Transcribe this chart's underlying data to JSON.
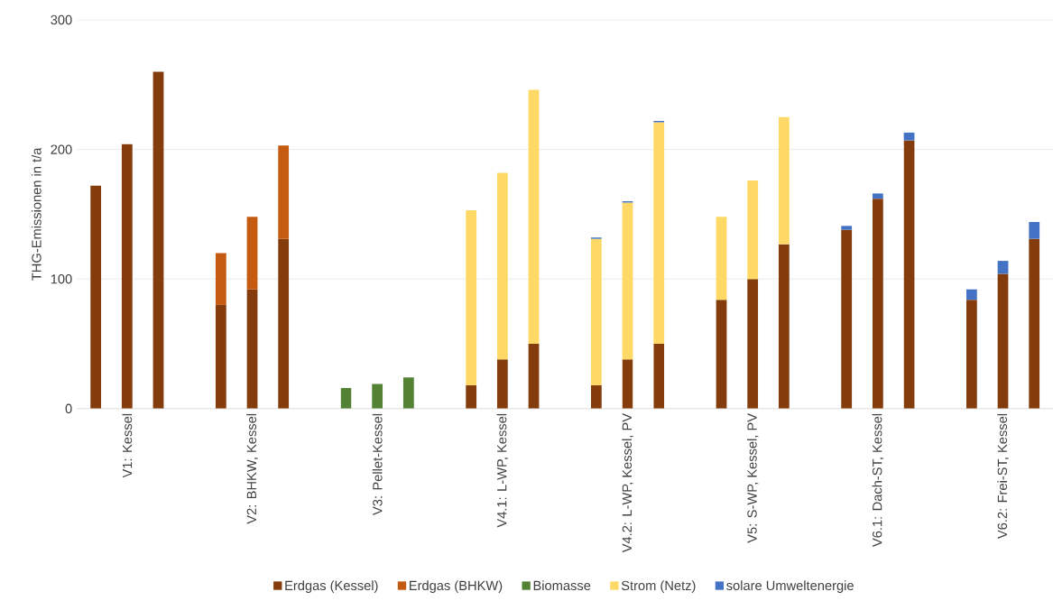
{
  "chart_data": {
    "type": "bar",
    "stacked": true,
    "ylabel": "THG-Emissionen in t/a",
    "categories": [
      null,
      "V1: Kessel",
      null,
      null,
      null,
      "V2: BHKW, Kessel",
      null,
      null,
      null,
      "V3: Pellet-Kessel",
      null,
      null,
      null,
      "V4.1: L-WP, Kessel",
      null,
      null,
      null,
      "V4.2: L-WP, Kessel, PV",
      null,
      null,
      null,
      "V5: S-WP, Kessel, PV",
      null,
      null,
      null,
      "V6.1: Dach-ST, Kessel",
      null,
      null,
      null,
      "V6.2: Frei-ST, Kessel",
      null
    ],
    "series": [
      {
        "name": "Erdgas (Kessel)",
        "color": "#843c0c",
        "values": [
          172,
          204,
          260,
          null,
          80,
          92,
          131,
          null,
          null,
          null,
          null,
          null,
          18,
          38,
          50,
          null,
          18,
          38,
          50,
          null,
          84,
          100,
          127,
          null,
          138,
          162,
          207,
          null,
          84,
          104,
          131
        ]
      },
      {
        "name": "Erdgas (BHKW)",
        "color": "#c55a11",
        "values": [
          null,
          null,
          null,
          null,
          40,
          56,
          72,
          null,
          null,
          null,
          null,
          null,
          null,
          null,
          null,
          null,
          null,
          null,
          null,
          null,
          null,
          null,
          null,
          null,
          null,
          null,
          null,
          null,
          null,
          null,
          null
        ]
      },
      {
        "name": "Biomasse",
        "color": "#548235",
        "values": [
          null,
          null,
          null,
          null,
          null,
          null,
          null,
          null,
          16,
          19,
          24,
          null,
          null,
          null,
          null,
          null,
          null,
          null,
          null,
          null,
          null,
          null,
          null,
          null,
          null,
          null,
          null,
          null,
          null,
          null,
          null
        ]
      },
      {
        "name": "Strom (Netz)",
        "color": "#ffd966",
        "values": [
          null,
          null,
          null,
          null,
          null,
          null,
          null,
          null,
          null,
          null,
          null,
          null,
          135,
          144,
          196,
          null,
          113,
          121,
          171,
          null,
          64,
          76,
          98,
          null,
          null,
          null,
          null,
          null,
          null,
          null,
          null
        ]
      },
      {
        "name": "solare Umweltenergie",
        "color": "#4472c4",
        "values": [
          null,
          null,
          null,
          null,
          null,
          null,
          null,
          null,
          null,
          null,
          null,
          null,
          null,
          null,
          null,
          null,
          1,
          1,
          1,
          null,
          null,
          null,
          null,
          null,
          3,
          4,
          6,
          null,
          8,
          10,
          13
        ]
      }
    ],
    "ylim": [
      0,
      300
    ],
    "yticks": [
      0,
      100,
      200,
      300
    ],
    "grid": "y",
    "legend": "bottom"
  }
}
